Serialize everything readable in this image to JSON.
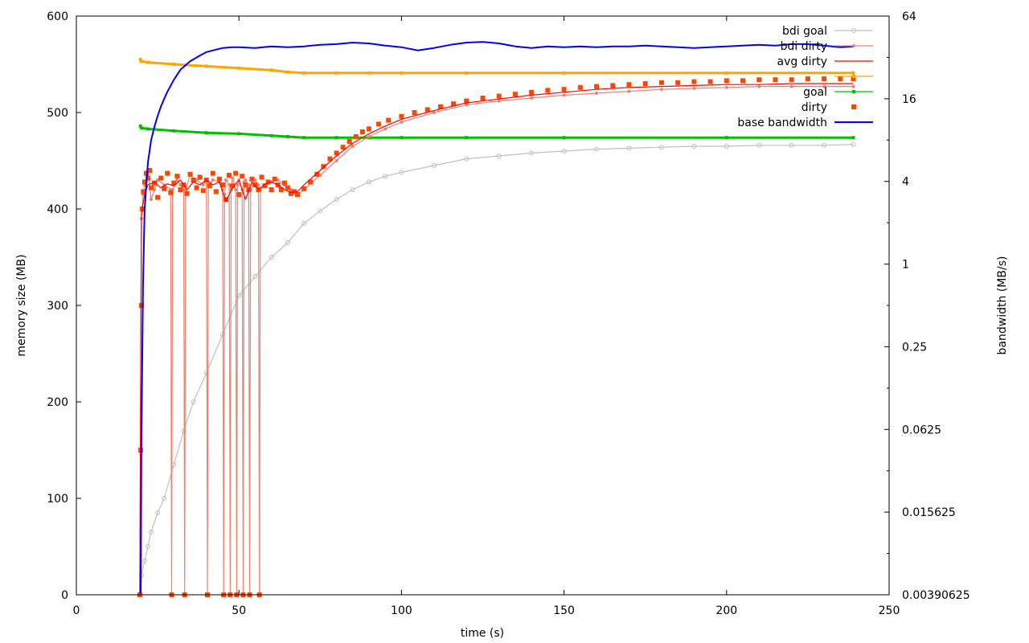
{
  "colors": {
    "bdi_goal": "#c0c0c0",
    "bdi_dirty": "#f08070",
    "avg_dirty": "#ff0000",
    "limit": "#ffa500",
    "goal": "#00c000",
    "dirty": "#ff4500",
    "base_bandwidth": "#0000ff"
  },
  "chart_data": {
    "type": "line",
    "title": "",
    "xlabel": "time (s)",
    "ylabel": "memory size (MB)",
    "y2label": "bandwidth (MB/s)",
    "xlim": [
      0,
      250
    ],
    "ylim": [
      0,
      600
    ],
    "y2lim": [
      0.00390625,
      64
    ],
    "y2scale": "log2",
    "grid": false,
    "legend_position": "top-right",
    "x_ticks": [
      "0",
      "50",
      "100",
      "150",
      "200",
      "250"
    ],
    "y_ticks": [
      "0",
      "100",
      "200",
      "300",
      "400",
      "500",
      "600"
    ],
    "y2_ticks": [
      "0.00390625",
      "0.015625",
      "0.0625",
      "0.25",
      "1",
      "4",
      "16",
      "64"
    ],
    "series": [
      {
        "name": "bdi goal",
        "key": "bdi_goal",
        "axis": "left",
        "style": "linepoints-circle",
        "x": [
          19.7,
          20,
          21,
          22,
          23,
          25,
          27,
          30,
          33,
          36,
          40,
          45,
          50,
          55,
          60,
          65,
          70,
          75,
          80,
          85,
          90,
          95,
          100,
          110,
          120,
          130,
          140,
          150,
          160,
          170,
          180,
          190,
          200,
          210,
          220,
          230,
          239
        ],
        "y": [
          0,
          20,
          35,
          50,
          65,
          85,
          100,
          135,
          170,
          200,
          230,
          270,
          310,
          330,
          350,
          365,
          385,
          398,
          410,
          420,
          428,
          434,
          438,
          445,
          452,
          455,
          458,
          460,
          462,
          463,
          464,
          465,
          465,
          466,
          466,
          466,
          467
        ]
      },
      {
        "name": "bdi dirty",
        "key": "bdi_dirty",
        "axis": "left",
        "style": "linepoints-dot",
        "x": [
          19.5,
          20,
          20.5,
          21,
          22,
          23,
          24,
          25,
          27,
          29,
          29.3,
          29.6,
          31,
          32,
          33,
          33.3,
          33.6,
          35,
          37,
          39,
          40,
          40.3,
          40.6,
          42,
          44,
          45,
          45.3,
          45.6,
          46,
          47,
          47.3,
          47.6,
          48,
          49,
          49.3,
          49.6,
          50,
          51,
          51.3,
          51.6,
          52,
          53,
          53.3,
          53.6,
          55,
          56,
          56.3,
          56.6,
          58,
          60,
          62,
          64,
          66,
          68,
          70,
          75,
          80,
          85,
          90,
          95,
          100,
          110,
          120,
          130,
          140,
          150,
          160,
          170,
          180,
          190,
          200,
          210,
          220,
          230,
          239
        ],
        "y": [
          0,
          390,
          415,
          425,
          440,
          410,
          420,
          430,
          425,
          420,
          0,
          420,
          430,
          425,
          420,
          0,
          420,
          435,
          430,
          425,
          430,
          0,
          425,
          430,
          428,
          420,
          0,
          415,
          430,
          425,
          0,
          420,
          432,
          420,
          0,
          425,
          430,
          420,
          0,
          428,
          430,
          425,
          0,
          420,
          430,
          425,
          0,
          420,
          425,
          428,
          430,
          425,
          420,
          415,
          420,
          435,
          450,
          465,
          475,
          483,
          490,
          500,
          508,
          512,
          515,
          518,
          520,
          522,
          524,
          525,
          526,
          527,
          527,
          527,
          527
        ]
      },
      {
        "name": "avg dirty",
        "key": "avg_dirty",
        "axis": "left",
        "style": "line",
        "x": [
          19.5,
          20,
          21,
          22,
          24,
          26,
          28,
          30,
          32,
          34,
          36,
          38,
          40,
          42,
          44,
          46,
          48,
          50,
          52,
          54,
          56,
          58,
          60,
          62,
          64,
          66,
          68,
          70,
          75,
          80,
          85,
          90,
          95,
          100,
          110,
          120,
          130,
          140,
          150,
          160,
          170,
          180,
          190,
          200,
          210,
          220,
          230,
          239
        ],
        "y": [
          0,
          395,
          415,
          425,
          428,
          422,
          426,
          424,
          430,
          420,
          428,
          425,
          430,
          425,
          428,
          408,
          422,
          430,
          410,
          428,
          420,
          426,
          428,
          425,
          420,
          417,
          418,
          425,
          440,
          455,
          468,
          478,
          486,
          493,
          502,
          510,
          514,
          518,
          521,
          524,
          526,
          527,
          528,
          529,
          529,
          530,
          530,
          530
        ]
      },
      {
        "name": "",
        "key": "limit",
        "axis": "left",
        "style": "linepoints-square",
        "x": [
          19.7,
          20,
          22,
          30,
          40,
          50,
          60,
          65,
          70,
          80,
          90,
          100,
          120,
          150,
          200,
          239
        ],
        "y": [
          555,
          553,
          552,
          550,
          548,
          546,
          544,
          542,
          541,
          541,
          541,
          541,
          541,
          541,
          541,
          541
        ]
      },
      {
        "name": "goal",
        "key": "goal",
        "axis": "left",
        "style": "linepoints-square",
        "x": [
          19.7,
          20,
          22,
          30,
          40,
          50,
          60,
          65,
          70,
          80,
          90,
          100,
          120,
          150,
          200,
          239
        ],
        "y": [
          486,
          484,
          483,
          481,
          479,
          478,
          476,
          475,
          474,
          474,
          474,
          474,
          474,
          474,
          474,
          474
        ]
      },
      {
        "name": "dirty",
        "key": "dirty",
        "axis": "left",
        "style": "points-square",
        "x": [
          19.5,
          19.8,
          20,
          20.3,
          20.6,
          21,
          21.5,
          22,
          22.5,
          23,
          24,
          25,
          26,
          27,
          28,
          29,
          29.3,
          30,
          31,
          32,
          33,
          33.3,
          34,
          35,
          36,
          37,
          38,
          39,
          40,
          40.3,
          41,
          42,
          43,
          44,
          45,
          45.3,
          46,
          47,
          47.3,
          48,
          49,
          49.3,
          50,
          51,
          51.3,
          52,
          53,
          53.3,
          54,
          55,
          56,
          56.3,
          57,
          58,
          59,
          60,
          61,
          62,
          63,
          64,
          65,
          66,
          67,
          68,
          70,
          72,
          74,
          76,
          78,
          80,
          82,
          84,
          86,
          88,
          90,
          93,
          96,
          100,
          104,
          108,
          112,
          116,
          120,
          125,
          130,
          135,
          140,
          145,
          150,
          155,
          160,
          165,
          170,
          175,
          180,
          185,
          190,
          195,
          200,
          205,
          210,
          215,
          220,
          225,
          230,
          235,
          239
        ],
        "y": [
          0,
          150,
          300,
          400,
          418,
          428,
          437,
          432,
          440,
          422,
          427,
          412,
          432,
          421,
          437,
          417,
          0,
          427,
          434,
          420,
          425,
          0,
          416,
          436,
          430,
          422,
          433,
          419,
          430,
          0,
          424,
          437,
          418,
          431,
          425,
          0,
          410,
          435,
          0,
          424,
          437,
          0,
          415,
          434,
          0,
          425,
          420,
          0,
          431,
          425,
          420,
          0,
          433,
          424,
          428,
          420,
          431,
          425,
          420,
          427,
          422,
          416,
          418,
          415,
          421,
          428,
          436,
          444,
          452,
          458,
          464,
          470,
          475,
          480,
          483,
          488,
          492,
          496,
          500,
          503,
          506,
          509,
          512,
          515,
          517,
          519,
          521,
          523,
          524,
          526,
          527,
          528,
          529,
          530,
          531,
          531,
          532,
          532,
          533,
          533,
          534,
          534,
          534,
          535,
          535,
          535,
          535
        ]
      },
      {
        "name": "base bandwidth",
        "key": "base_bandwidth",
        "axis": "right",
        "style": "line",
        "x": [
          19.8,
          20,
          20.5,
          21,
          22,
          23,
          24,
          25,
          26,
          27,
          28,
          30,
          32,
          35,
          38,
          40,
          43,
          45,
          48,
          50,
          55,
          60,
          65,
          70,
          75,
          80,
          85,
          90,
          95,
          100,
          105,
          110,
          115,
          120,
          125,
          130,
          135,
          140,
          145,
          150,
          155,
          160,
          165,
          170,
          175,
          180,
          185,
          190,
          195,
          200,
          205,
          210,
          215,
          220,
          225,
          230,
          235,
          239
        ],
        "y": [
          0.004,
          0.05,
          0.7,
          2.5,
          5.5,
          8,
          10,
          12,
          14,
          16,
          18,
          22,
          26,
          30,
          33,
          35,
          36.5,
          37.5,
          38,
          38,
          37.5,
          38.5,
          38,
          38.5,
          39.5,
          40,
          41,
          40.5,
          39,
          38,
          36,
          37.5,
          39.5,
          41,
          41.5,
          40.5,
          38.5,
          37.5,
          38.5,
          38,
          38.5,
          38,
          38.5,
          38.5,
          39,
          38.5,
          38,
          37.5,
          38,
          38.5,
          39,
          39.5,
          39,
          40,
          40,
          39,
          38,
          38.5
        ]
      }
    ]
  }
}
